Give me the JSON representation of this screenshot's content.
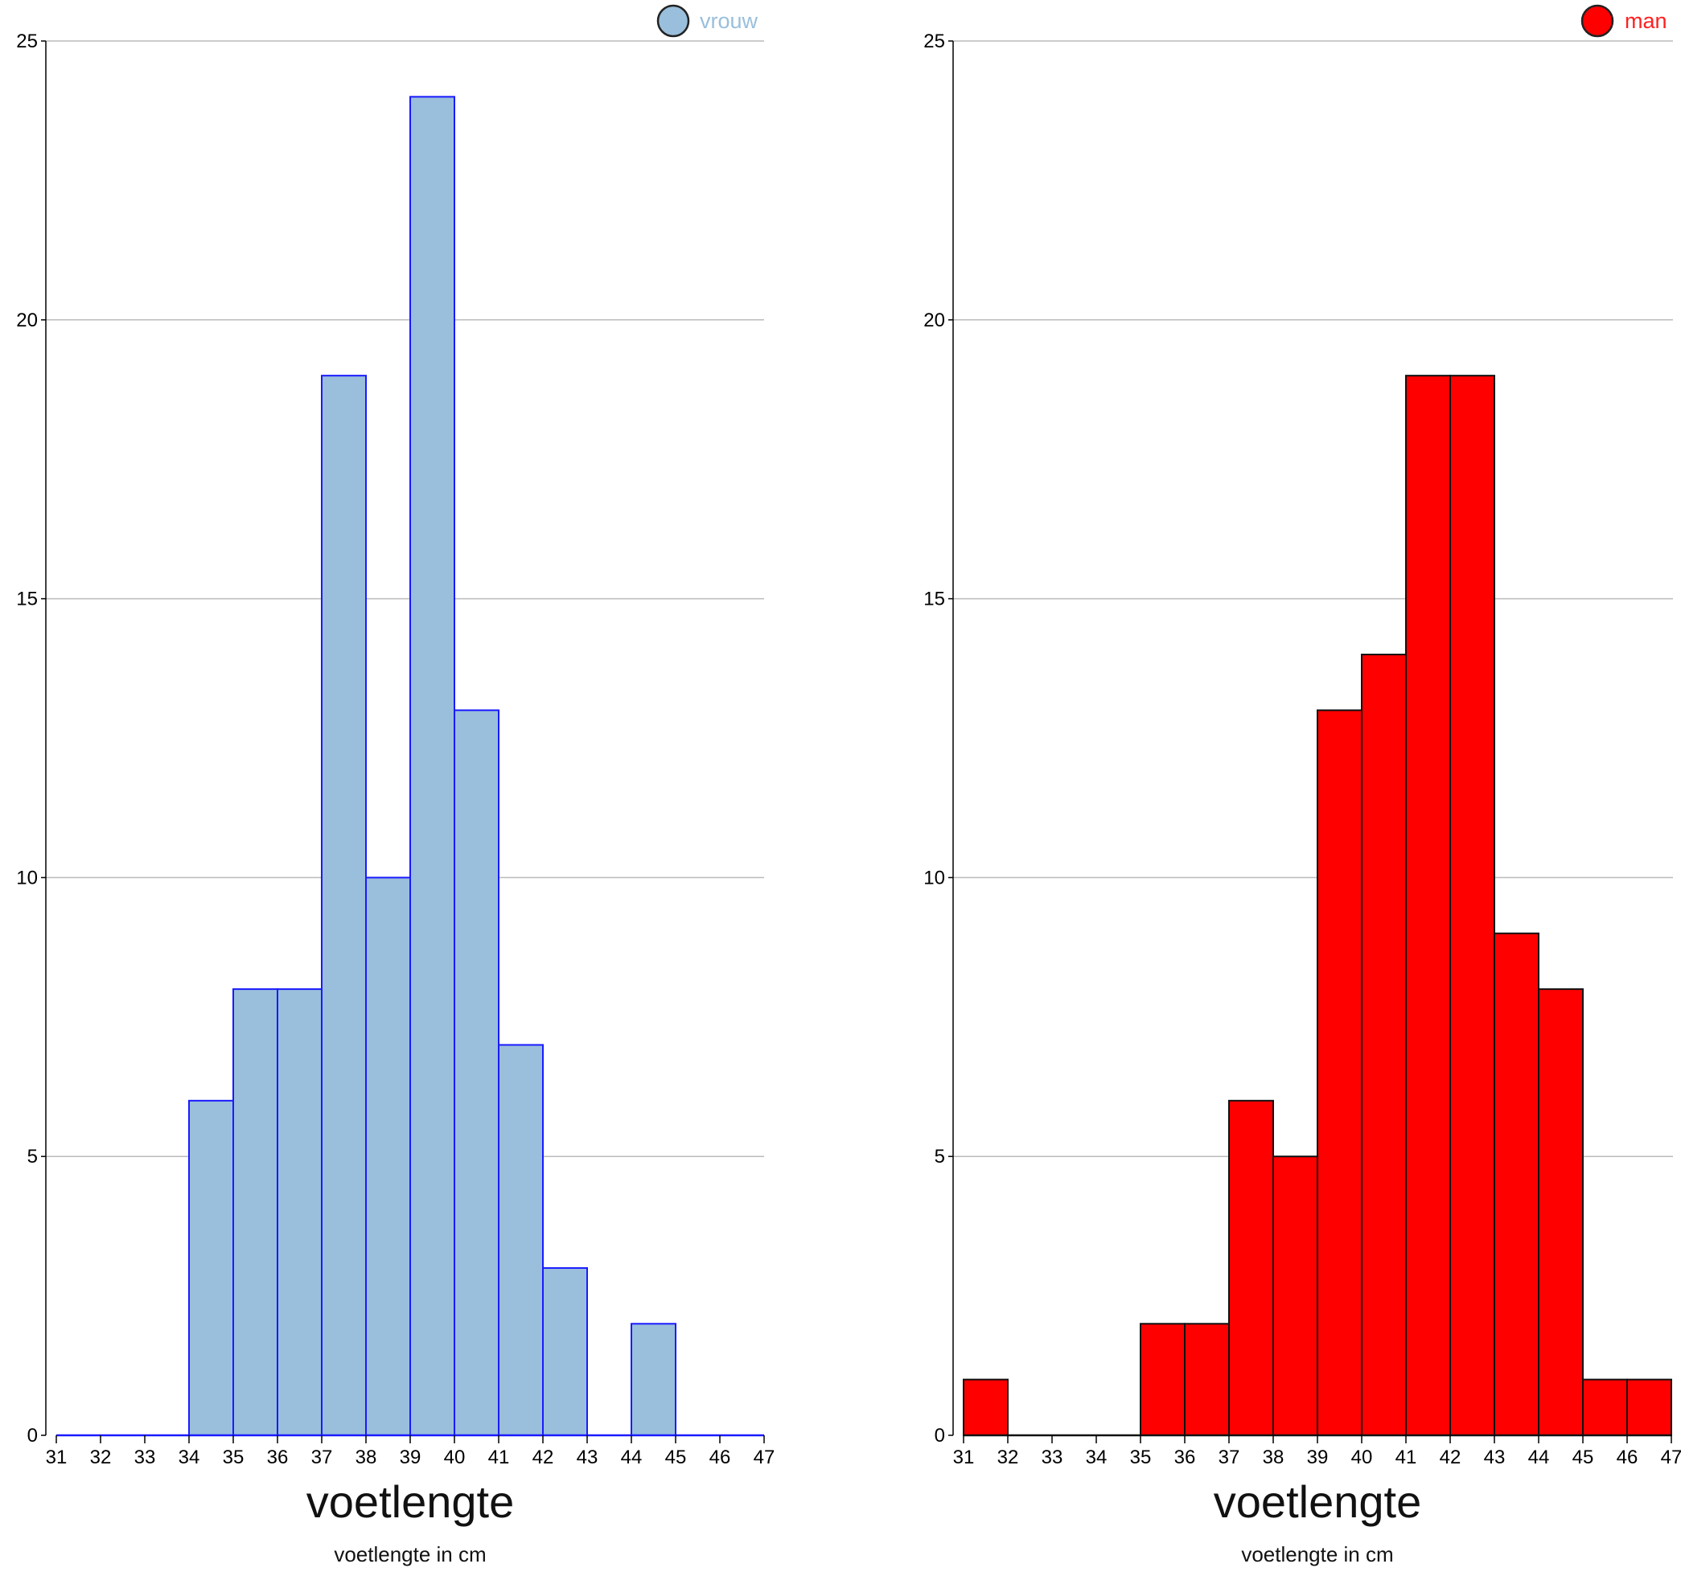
{
  "chart_data": [
    {
      "type": "bar",
      "variant": "histogram",
      "bin_edges": [
        31,
        32,
        33,
        34,
        35,
        36,
        37,
        38,
        39,
        40,
        41,
        42,
        43,
        44,
        45,
        46,
        47
      ],
      "x_tick_labels": [
        "31",
        "32",
        "33",
        "34",
        "35",
        "36",
        "37",
        "38",
        "39",
        "40",
        "41",
        "42",
        "43",
        "44",
        "45",
        "46",
        "47"
      ],
      "y_tick_labels": [
        "0",
        "5",
        "10",
        "15",
        "20",
        "25"
      ],
      "ylim": [
        0,
        25
      ],
      "xlim": [
        31,
        47
      ],
      "xlabel": "voetlengte",
      "xlabel_sub": "voetlengte in cm",
      "grid": "horizontal",
      "legend": {
        "label": "vrouw",
        "placement": "top-right"
      },
      "series": [
        {
          "name": "vrouw",
          "values": [
            0,
            0,
            0,
            6,
            8,
            8,
            19,
            10,
            24,
            13,
            7,
            3,
            0,
            2,
            0,
            0
          ]
        }
      ],
      "colors": {
        "fill": "#99bfdc",
        "stroke": "#1a1aff",
        "legend_text": "#99bfdc",
        "axis": "#1a1aff"
      }
    },
    {
      "type": "bar",
      "variant": "histogram",
      "bin_edges": [
        31,
        32,
        33,
        34,
        35,
        36,
        37,
        38,
        39,
        40,
        41,
        42,
        43,
        44,
        45,
        46,
        47
      ],
      "x_tick_labels": [
        "31",
        "32",
        "33",
        "34",
        "35",
        "36",
        "37",
        "38",
        "39",
        "40",
        "41",
        "42",
        "43",
        "44",
        "45",
        "46",
        "47"
      ],
      "y_tick_labels": [
        "0",
        "5",
        "10",
        "15",
        "20",
        "25"
      ],
      "ylim": [
        0,
        25
      ],
      "xlim": [
        31,
        47
      ],
      "xlabel": "voetlengte",
      "xlabel_sub": "voetlengte in cm",
      "grid": "horizontal",
      "legend": {
        "label": "man",
        "placement": "top-right"
      },
      "series": [
        {
          "name": "man",
          "values": [
            1,
            0,
            0,
            0,
            2,
            2,
            6,
            5,
            13,
            14,
            19,
            19,
            9,
            8,
            1,
            1
          ]
        }
      ],
      "colors": {
        "fill": "#ff0000",
        "stroke": "#111111",
        "legend_text": "#ff2020",
        "axis": "#111111"
      }
    }
  ]
}
